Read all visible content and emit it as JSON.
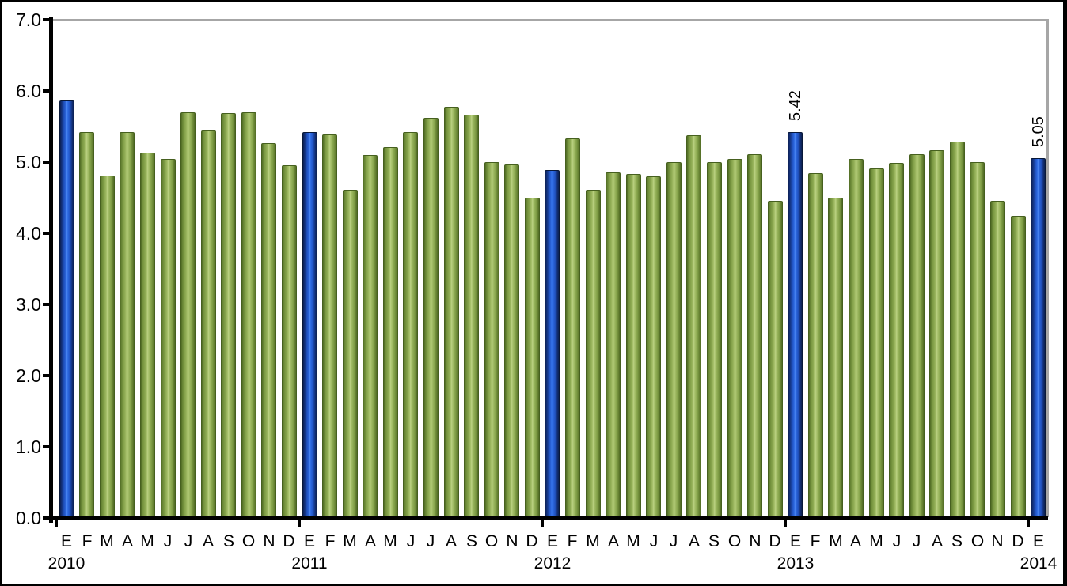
{
  "chart_data": {
    "type": "bar",
    "title": "",
    "xlabel": "",
    "ylabel": "",
    "ylim": [
      0,
      7
    ],
    "grid": "plot-frame-top-and-right-only",
    "legend_position": "none",
    "ytick_labels": [
      "0.0",
      "1.0",
      "2.0",
      "3.0",
      "4.0",
      "5.0",
      "6.0",
      "7.0"
    ],
    "month_labels": [
      "E",
      "F",
      "M",
      "A",
      "M",
      "J",
      "J",
      "A",
      "S",
      "O",
      "N",
      "D"
    ],
    "years": [
      {
        "year": "2010",
        "values": [
          5.87,
          5.42,
          4.81,
          5.42,
          5.13,
          5.04,
          5.7,
          5.44,
          5.69,
          5.7,
          5.27,
          4.95
        ]
      },
      {
        "year": "2011",
        "values": [
          5.42,
          5.39,
          4.61,
          5.1,
          5.21,
          5.42,
          5.62,
          5.78,
          5.67,
          5.0,
          4.97,
          4.5
        ]
      },
      {
        "year": "2012",
        "values": [
          4.89,
          5.33,
          4.61,
          4.86,
          4.83,
          4.8,
          5.0,
          5.38,
          5.0,
          5.04,
          5.11,
          4.46
        ]
      },
      {
        "year": "2013",
        "values": [
          5.42,
          4.84,
          4.5,
          5.04,
          4.91,
          4.99,
          5.11,
          5.17,
          5.29,
          5.0,
          4.45,
          4.24
        ]
      },
      {
        "year": "2014",
        "values": [
          5.05
        ]
      }
    ],
    "highlight_month_index": 0,
    "data_labels": [
      {
        "year": "2013",
        "month_index": 0,
        "text": "5.42"
      },
      {
        "year": "2014",
        "month_index": 0,
        "text": "5.05"
      }
    ],
    "colors": {
      "highlight_bar": "#2e6be4",
      "highlight_bar_edge": "#0c2050",
      "regular_bar": "#9cb95e",
      "regular_bar_edge": "#4f6a24",
      "axis": "#000000",
      "plot_border": "#a6a6a6",
      "text": "#000000",
      "background": "#ffffff"
    }
  }
}
